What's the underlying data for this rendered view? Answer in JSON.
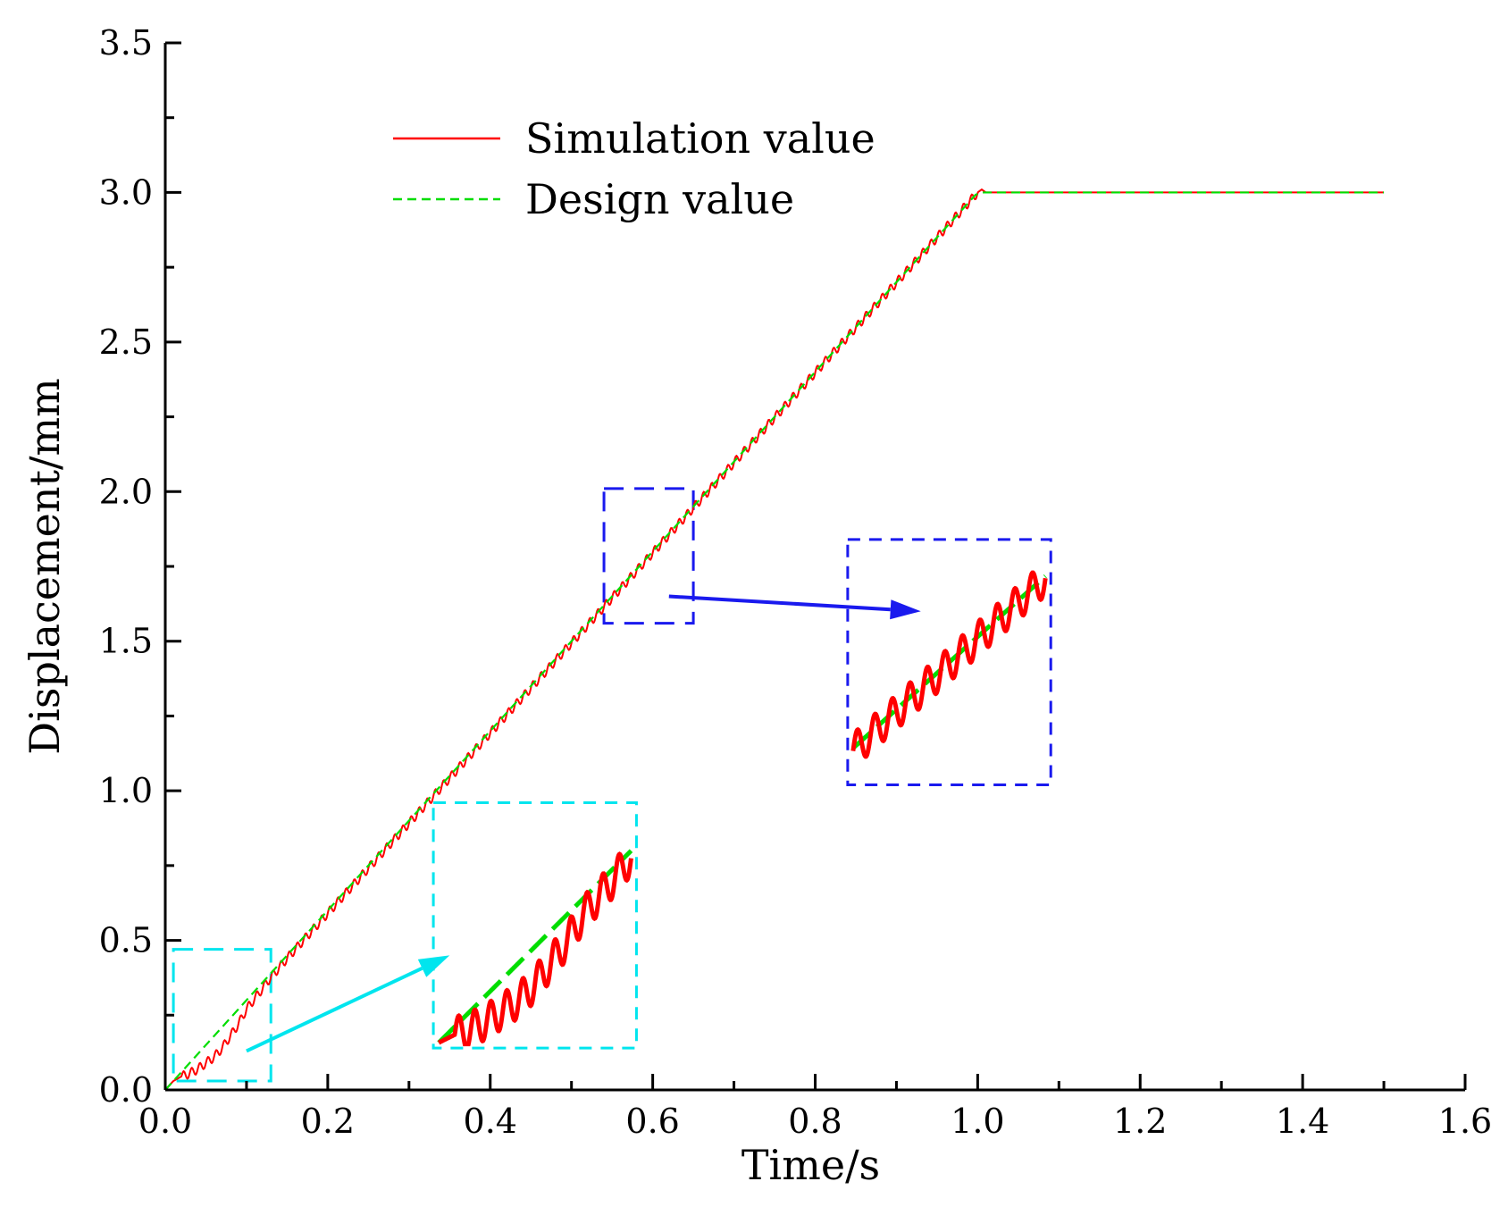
{
  "chart_data": {
    "type": "line",
    "title": "",
    "xlabel": "Time/s",
    "ylabel": "Displacement/mm",
    "xlim": [
      0.0,
      1.6
    ],
    "ylim": [
      0.0,
      3.5
    ],
    "xticks": [
      0.0,
      0.2,
      0.4,
      0.6,
      0.8,
      1.0,
      1.2,
      1.4,
      1.6
    ],
    "yticks": [
      0.0,
      0.5,
      1.0,
      1.5,
      2.0,
      2.5,
      3.0,
      3.5
    ],
    "xtick_labels": [
      "0.0",
      "0.2",
      "0.4",
      "0.6",
      "0.8",
      "1.0",
      "1.2",
      "1.4",
      "1.6"
    ],
    "ytick_labels": [
      "0.0",
      "0.5",
      "1.0",
      "1.5",
      "2.0",
      "2.5",
      "3.0",
      "3.5"
    ],
    "legend_position": "top-center",
    "series": [
      {
        "name": "Simulation value",
        "color": "#ff0000",
        "style": "solid",
        "x": [
          0.0,
          0.01,
          0.02,
          0.03,
          0.04,
          0.05,
          0.06,
          0.07,
          0.08,
          0.09,
          0.1,
          0.12,
          0.125,
          0.15,
          1.0,
          1.005,
          1.01,
          1.5
        ],
        "y": [
          0.0,
          0.03,
          0.045,
          0.055,
          0.07,
          0.09,
          0.11,
          0.14,
          0.18,
          0.22,
          0.27,
          0.34,
          0.36,
          0.44,
          3.0,
          3.01,
          3.0,
          3.0
        ],
        "ripple_amplitude": 0.015,
        "ripple_period": 0.01
      },
      {
        "name": "Design value",
        "color": "#00dd00",
        "style": "dashed",
        "x": [
          0.0,
          1.0,
          1.5
        ],
        "y": [
          0.0,
          3.0,
          3.0
        ]
      }
    ],
    "annotations": [
      {
        "name": "zoom-box-low",
        "color": "#00e5ee",
        "source_x": [
          0.01,
          0.13
        ],
        "source_y": [
          0.03,
          0.47
        ],
        "inset_x": [
          0.33,
          0.58
        ],
        "inset_y": [
          0.14,
          0.96
        ],
        "arrow_from": [
          0.1,
          0.13
        ],
        "arrow_to": [
          0.35,
          0.45
        ]
      },
      {
        "name": "zoom-box-mid",
        "color": "#1a1aee",
        "source_x": [
          0.54,
          0.65
        ],
        "source_y": [
          1.56,
          2.01
        ],
        "inset_x": [
          0.84,
          1.09
        ],
        "inset_y": [
          1.02,
          1.84
        ],
        "arrow_from": [
          0.62,
          1.65
        ],
        "arrow_to": [
          0.93,
          1.6
        ]
      }
    ]
  }
}
